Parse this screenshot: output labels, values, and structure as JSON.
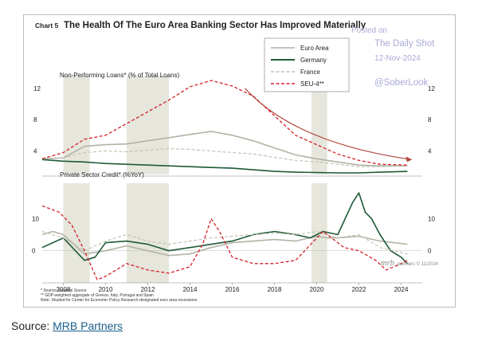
{
  "title": {
    "chart_number": "Chart 5",
    "text": "The Health Of The Euro Area Banking Sector Has Improved Materially"
  },
  "watermark": {
    "line1": "Posted on",
    "line2": "The Daily Shot",
    "line3": "12-Nov-2024",
    "line4": "@SoberLook"
  },
  "footnotes": [
    "* Source: National Source",
    "** GDP-weighted aggregate of Greece, Italy, Portugal and Spain",
    "Note: Shaded for Center for Economic Policy Research-designated euro area recessions"
  ],
  "brand": {
    "logo": "mrb",
    "text": "partners © 11/2024"
  },
  "source": {
    "label": "Source: ",
    "link_text": "MRB Partners"
  },
  "colors": {
    "euro_area": "#b2b2a6",
    "germany": "#1e5a36",
    "france": "#c2c2b4",
    "seu4": "#d42027",
    "shade": "#e6e6dd",
    "arrow": "#b0443a"
  },
  "chart_data": [
    {
      "type": "line",
      "panel": "top",
      "title": "Non-Performing Loans* (% of Total Loans)",
      "x_range": [
        2007.0,
        2025.0
      ],
      "ylim": [
        1,
        13
      ],
      "yticks": [
        4,
        8,
        12
      ],
      "grid": false,
      "legend": {
        "placement": "top-right",
        "entries": [
          "Euro Area",
          "Germany",
          "France",
          "SEU-4**"
        ]
      },
      "recessions": [
        [
          2008.0,
          2009.25
        ],
        [
          2011.0,
          2013.0
        ],
        [
          2019.75,
          2020.5
        ]
      ],
      "series": [
        {
          "name": "Euro Area",
          "style": "solid",
          "x": [
            2007,
            2008,
            2009,
            2010,
            2011,
            2012,
            2013,
            2014,
            2015,
            2016,
            2017,
            2018,
            2019,
            2020,
            2021,
            2022,
            2023,
            2024.3
          ],
          "y": [
            3.0,
            3.1,
            4.6,
            4.8,
            4.9,
            5.3,
            5.7,
            6.1,
            6.5,
            6.0,
            5.3,
            4.4,
            3.5,
            3.0,
            2.6,
            2.2,
            2.1,
            2.1
          ]
        },
        {
          "name": "Germany",
          "style": "solid",
          "x": [
            2007,
            2008,
            2009,
            2010,
            2011,
            2012,
            2013,
            2014,
            2015,
            2016,
            2017,
            2018,
            2019,
            2020,
            2021,
            2022,
            2023,
            2024.3
          ],
          "y": [
            2.9,
            2.7,
            2.6,
            2.4,
            2.3,
            2.2,
            2.1,
            2.0,
            1.9,
            1.8,
            1.6,
            1.4,
            1.3,
            1.25,
            1.2,
            1.2,
            1.3,
            1.4
          ]
        },
        {
          "name": "France",
          "style": "dashed",
          "x": [
            2007,
            2008,
            2009,
            2010,
            2011,
            2012,
            2013,
            2014,
            2015,
            2016,
            2017,
            2018,
            2019,
            2020,
            2021,
            2022,
            2023,
            2024.3
          ],
          "y": [
            3.0,
            3.1,
            3.8,
            4.0,
            3.9,
            4.1,
            4.3,
            4.2,
            4.0,
            3.8,
            3.6,
            3.2,
            2.8,
            2.6,
            2.3,
            2.0,
            2.0,
            2.1
          ]
        },
        {
          "name": "SEU-4**",
          "style": "dashed",
          "x": [
            2007,
            2008,
            2009,
            2010,
            2011,
            2012,
            2013,
            2014,
            2015,
            2016,
            2017,
            2018,
            2019,
            2020,
            2021,
            2022,
            2023,
            2024.3
          ],
          "y": [
            3.0,
            3.8,
            5.5,
            6.0,
            7.5,
            9.0,
            10.5,
            12.2,
            13.0,
            12.3,
            11.0,
            8.5,
            6.0,
            4.8,
            3.6,
            2.8,
            2.3,
            2.2
          ]
        }
      ],
      "annotations": [
        {
          "type": "arrow",
          "from": [
            2016.6,
            12.0
          ],
          "to": [
            2024.5,
            2.9
          ]
        }
      ]
    },
    {
      "type": "line",
      "panel": "bottom",
      "title": "Private Sector Credit* (%YoY)",
      "x_range": [
        2007.0,
        2025.0
      ],
      "ylim": [
        -10,
        22
      ],
      "yticks": [
        0,
        10
      ],
      "grid": false,
      "xticks": [
        "2008",
        "2010",
        "2012",
        "2014",
        "2016",
        "2018",
        "2020",
        "2022",
        "2024"
      ],
      "xtick_values": [
        2008,
        2010,
        2012,
        2014,
        2016,
        2018,
        2020,
        2022,
        2024
      ],
      "recessions": [
        [
          2008.0,
          2009.25
        ],
        [
          2011.0,
          2013.0
        ],
        [
          2019.75,
          2020.5
        ]
      ],
      "series": [
        {
          "name": "Euro Area",
          "style": "solid",
          "x": [
            2007,
            2007.5,
            2008,
            2009,
            2010,
            2011,
            2012,
            2013,
            2014,
            2015,
            2016,
            2017,
            2018,
            2019,
            2020,
            2020.5,
            2021,
            2022,
            2023,
            2024.3
          ],
          "y": [
            5,
            6,
            5,
            -1,
            0,
            1.5,
            0,
            -1.5,
            -1,
            1,
            2.5,
            3,
            3.5,
            3,
            4.5,
            4,
            4,
            4.5,
            3,
            2
          ]
        },
        {
          "name": "Germany",
          "style": "solid",
          "x": [
            2007,
            2008,
            2009,
            2009.5,
            2010,
            2011,
            2012,
            2013,
            2014,
            2015,
            2016,
            2017,
            2018,
            2019,
            2019.7,
            2020.3,
            2021,
            2021.7,
            2022.0,
            2022.3,
            2022.6,
            2023,
            2023.5,
            2024.0,
            2024.3
          ],
          "y": [
            1,
            4,
            -3,
            -2,
            2.5,
            3,
            2,
            0,
            1,
            2,
            3,
            5,
            6,
            5,
            4,
            6,
            5,
            15,
            18,
            12,
            10,
            5,
            0,
            -2,
            -4
          ]
        },
        {
          "name": "France",
          "style": "dashed",
          "x": [
            2007,
            2008,
            2009,
            2010,
            2011,
            2012,
            2013,
            2014,
            2015,
            2016,
            2017,
            2018,
            2019,
            2020,
            2021,
            2022,
            2023,
            2024.3
          ],
          "y": [
            6,
            4,
            0,
            3,
            5,
            3,
            2,
            3,
            4,
            4.5,
            5,
            5.5,
            5,
            6,
            4,
            5,
            1,
            -1
          ]
        },
        {
          "name": "SEU-4**",
          "style": "dashed",
          "x": [
            2007,
            2007.8,
            2008.4,
            2009.0,
            2009.6,
            2010,
            2011,
            2012,
            2013,
            2014,
            2014.6,
            2015.0,
            2015.4,
            2016,
            2017,
            2018,
            2019,
            2020.3,
            2020.7,
            2021.3,
            2022,
            2022.8,
            2023.3,
            2024.0,
            2024.3
          ],
          "y": [
            14,
            12,
            8,
            0,
            -9,
            -8,
            -4,
            -6,
            -7,
            -5,
            2,
            10,
            6,
            -2,
            -4,
            -4,
            -3,
            6,
            4,
            1,
            0,
            -3,
            -6,
            -4,
            -3
          ]
        }
      ]
    }
  ]
}
